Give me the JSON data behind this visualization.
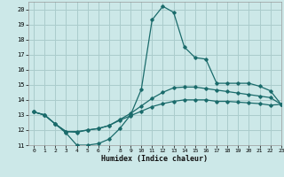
{
  "xlabel": "Humidex (Indice chaleur)",
  "xlim": [
    -0.5,
    23
  ],
  "ylim": [
    11,
    20.5
  ],
  "yticks": [
    11,
    12,
    13,
    14,
    15,
    16,
    17,
    18,
    19,
    20
  ],
  "xticks": [
    0,
    1,
    2,
    3,
    4,
    5,
    6,
    7,
    8,
    9,
    10,
    11,
    12,
    13,
    14,
    15,
    16,
    17,
    18,
    19,
    20,
    21,
    22,
    23
  ],
  "bg_color": "#cce8e8",
  "grid_color": "#aacccc",
  "line_color": "#1a6b6b",
  "line1_y": [
    13.2,
    13.0,
    12.4,
    11.8,
    11.0,
    11.0,
    11.1,
    11.4,
    12.1,
    13.0,
    14.7,
    19.3,
    20.2,
    19.8,
    17.5,
    16.8,
    16.7,
    15.1,
    15.1,
    15.1,
    15.1,
    14.9,
    14.6,
    13.7
  ],
  "line2_y": [
    13.2,
    13.0,
    12.4,
    11.9,
    11.9,
    12.0,
    12.1,
    12.3,
    12.7,
    13.1,
    13.6,
    14.1,
    14.5,
    14.8,
    14.85,
    14.85,
    14.75,
    14.65,
    14.55,
    14.45,
    14.35,
    14.25,
    14.15,
    13.7
  ],
  "line3_y": [
    13.2,
    13.0,
    12.4,
    11.9,
    11.85,
    12.0,
    12.1,
    12.3,
    12.65,
    12.95,
    13.25,
    13.55,
    13.75,
    13.9,
    14.0,
    14.0,
    14.0,
    13.9,
    13.9,
    13.85,
    13.8,
    13.75,
    13.65,
    13.7
  ]
}
